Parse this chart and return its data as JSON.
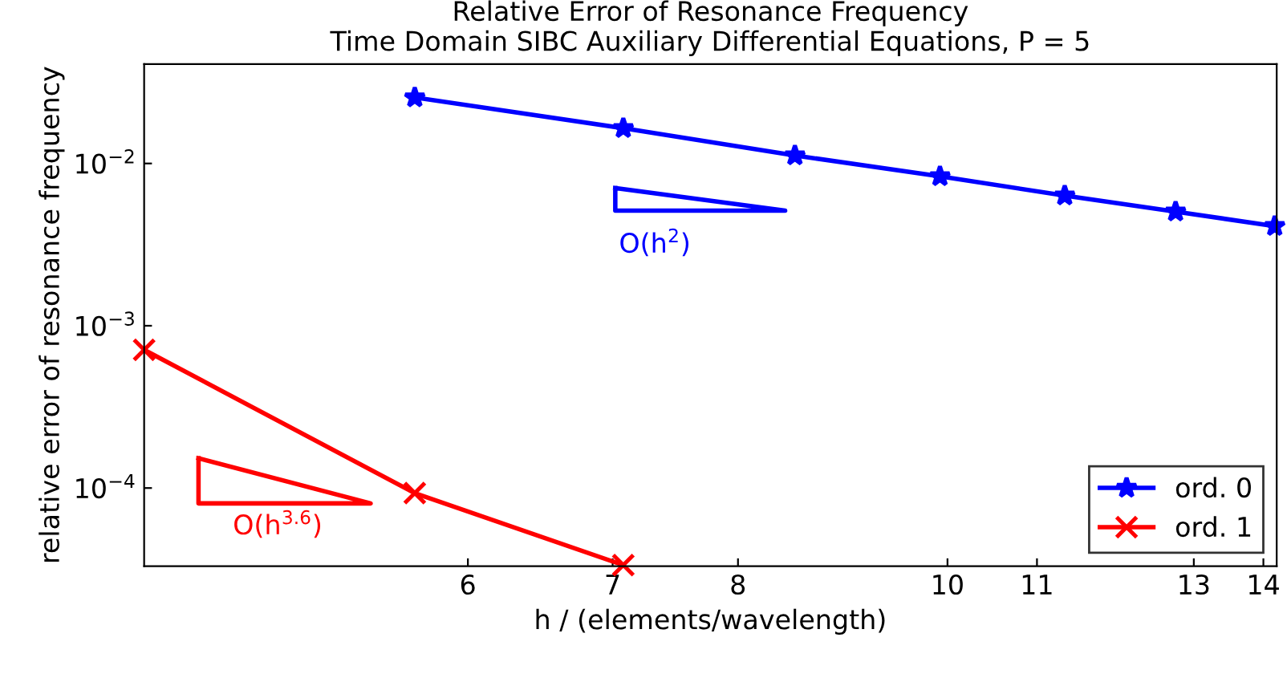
{
  "chart_data": {
    "type": "line",
    "title": "Relative Error of Resonance Frequency\nTime Domain SIBC Auxiliary Differential Equations, P = 5",
    "xlabel": "h / (elements/wavelength)",
    "ylabel": "relative error of resonance frequency",
    "log": "xy",
    "xlim": [
      4.25,
      14.2
    ],
    "ylim": [
      3.3e-05,
      0.041
    ],
    "xticks": [
      6,
      7,
      8,
      10,
      11,
      13,
      14
    ],
    "yticks": [
      {
        "value": 0.0001,
        "label": "10$^{−4}$"
      },
      {
        "value": 0.001,
        "label": "10$^{−3}$"
      },
      {
        "value": 0.01,
        "label": "10$^{−2}$"
      }
    ],
    "grid": false,
    "legend": "bottom right",
    "series": [
      {
        "name": "ord. 0",
        "color": "#0000ff",
        "marker": "star",
        "x": [
          5.67,
          7.08,
          8.5,
          9.92,
          11.33,
          12.75,
          14.17
        ],
        "values": [
          0.0255,
          0.0165,
          0.0112,
          0.00833,
          0.00634,
          0.00505,
          0.00411
        ]
      },
      {
        "name": "ord. 1",
        "color": "#ff0000",
        "marker": "cross",
        "x": [
          4.25,
          5.67,
          7.08
        ],
        "values": [
          0.00071,
          9.3e-05,
          3.35e-05
        ]
      }
    ],
    "annotations": [
      "O(h$^{2}$)",
      "O(h$^{3.6}$)"
    ]
  }
}
